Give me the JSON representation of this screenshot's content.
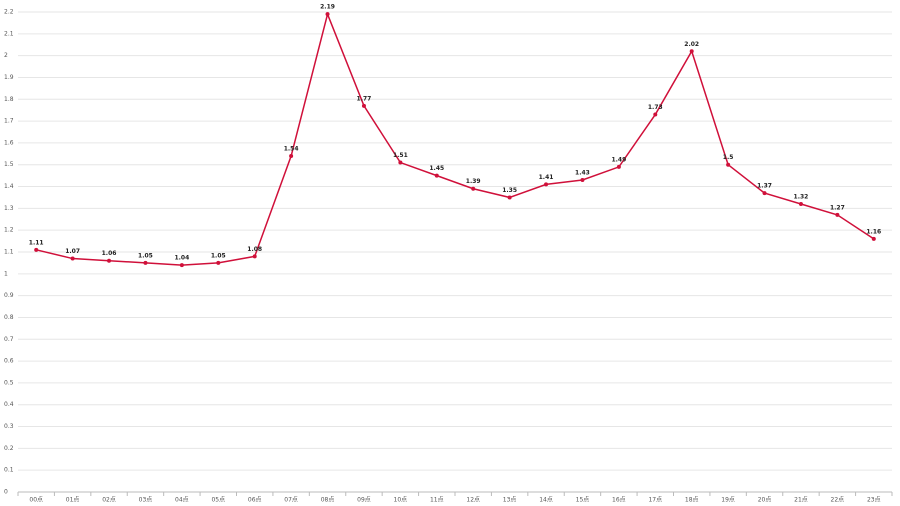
{
  "chart_data": {
    "type": "line",
    "categories": [
      "00点",
      "01点",
      "02点",
      "03点",
      "04点",
      "05点",
      "06点",
      "07点",
      "08点",
      "09点",
      "10点",
      "11点",
      "12点",
      "13点",
      "14点",
      "15点",
      "16点",
      "17点",
      "18点",
      "19点",
      "20点",
      "21点",
      "22点",
      "23点"
    ],
    "series": [
      {
        "name": "",
        "color": "#d0103a",
        "values": [
          1.11,
          1.07,
          1.06,
          1.05,
          1.04,
          1.05,
          1.08,
          1.54,
          2.19,
          1.77,
          1.51,
          1.45,
          1.39,
          1.35,
          1.41,
          1.43,
          1.49,
          1.73,
          2.02,
          1.5,
          1.37,
          1.32,
          1.27,
          1.16
        ]
      }
    ],
    "ylim": [
      0,
      2.2
    ],
    "yticks": [
      0,
      0.1,
      0.2,
      0.3,
      0.4,
      0.5,
      0.6,
      0.7,
      0.8,
      0.9,
      1,
      1.1,
      1.2,
      1.3,
      1.4,
      1.5,
      1.6,
      1.7,
      1.8,
      1.9,
      2,
      2.1,
      2.2
    ],
    "grid": true
  }
}
